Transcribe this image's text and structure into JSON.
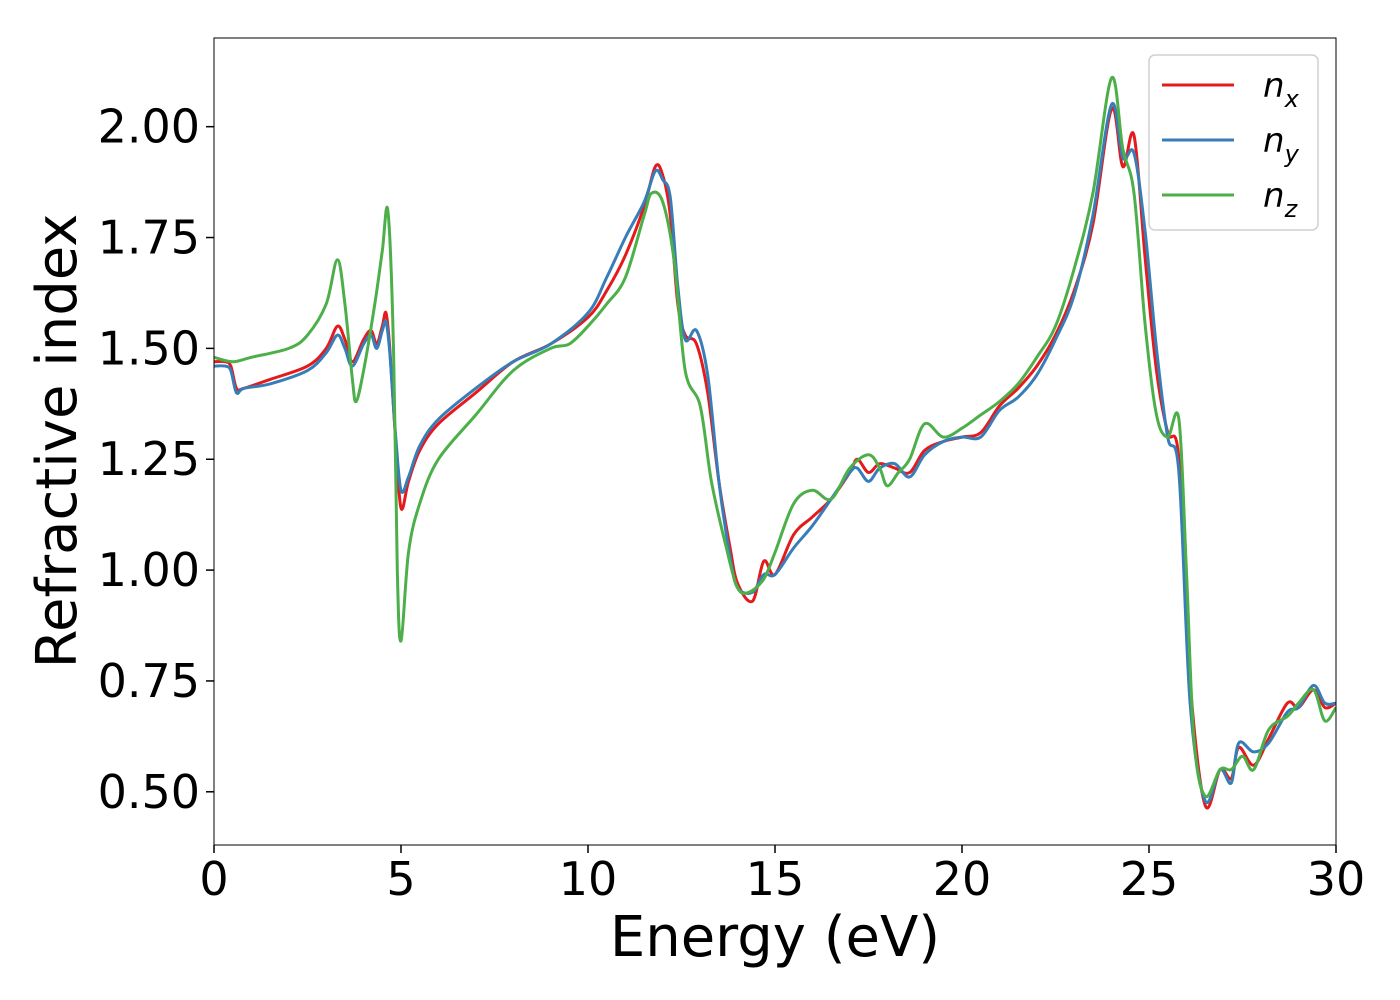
{
  "chart_data": {
    "type": "line",
    "title": "",
    "xlabel": "Energy (eV)",
    "ylabel": "Refractive index",
    "xlim": [
      0,
      30
    ],
    "ylim": [
      0.38,
      2.2
    ],
    "xticks": [
      0,
      5,
      10,
      15,
      20,
      25,
      30
    ],
    "xtick_labels": [
      "0",
      "5",
      "10",
      "15",
      "20",
      "25",
      "30"
    ],
    "yticks": [
      0.5,
      0.75,
      1.0,
      1.25,
      1.5,
      1.75,
      2.0
    ],
    "ytick_labels": [
      "0.50",
      "0.75",
      "1.00",
      "1.25",
      "1.50",
      "1.75",
      "2.00"
    ],
    "grid": false,
    "legend_position": "top-right",
    "series": [
      {
        "name": "n_x",
        "label_base": "n",
        "label_sub": "x",
        "color": "#e41a1c",
        "points": [
          [
            0,
            1.47
          ],
          [
            0.3,
            1.47
          ],
          [
            0.45,
            1.46
          ],
          [
            0.6,
            1.41
          ],
          [
            0.8,
            1.41
          ],
          [
            1.5,
            1.43
          ],
          [
            2.5,
            1.46
          ],
          [
            3.0,
            1.5
          ],
          [
            3.3,
            1.55
          ],
          [
            3.5,
            1.52
          ],
          [
            3.7,
            1.47
          ],
          [
            4.0,
            1.52
          ],
          [
            4.2,
            1.54
          ],
          [
            4.35,
            1.51
          ],
          [
            4.5,
            1.55
          ],
          [
            4.6,
            1.58
          ],
          [
            4.7,
            1.5
          ],
          [
            4.85,
            1.3
          ],
          [
            5.0,
            1.14
          ],
          [
            5.2,
            1.2
          ],
          [
            5.5,
            1.27
          ],
          [
            6.0,
            1.33
          ],
          [
            7.0,
            1.4
          ],
          [
            8.0,
            1.47
          ],
          [
            9.0,
            1.51
          ],
          [
            10.0,
            1.57
          ],
          [
            10.5,
            1.63
          ],
          [
            11.0,
            1.71
          ],
          [
            11.5,
            1.82
          ],
          [
            11.8,
            1.91
          ],
          [
            12.0,
            1.89
          ],
          [
            12.2,
            1.8
          ],
          [
            12.4,
            1.6
          ],
          [
            12.6,
            1.53
          ],
          [
            12.9,
            1.51
          ],
          [
            13.2,
            1.4
          ],
          [
            13.5,
            1.2
          ],
          [
            13.8,
            1.05
          ],
          [
            14.0,
            0.97
          ],
          [
            14.4,
            0.93
          ],
          [
            14.7,
            1.02
          ],
          [
            15.0,
            0.99
          ],
          [
            15.5,
            1.08
          ],
          [
            16.0,
            1.12
          ],
          [
            16.5,
            1.16
          ],
          [
            17.0,
            1.22
          ],
          [
            17.2,
            1.25
          ],
          [
            17.5,
            1.22
          ],
          [
            17.8,
            1.24
          ],
          [
            18.2,
            1.23
          ],
          [
            18.6,
            1.22
          ],
          [
            19.0,
            1.27
          ],
          [
            19.5,
            1.29
          ],
          [
            20.0,
            1.3
          ],
          [
            20.5,
            1.31
          ],
          [
            21.0,
            1.37
          ],
          [
            21.5,
            1.41
          ],
          [
            22.0,
            1.46
          ],
          [
            22.5,
            1.53
          ],
          [
            23.0,
            1.63
          ],
          [
            23.5,
            1.78
          ],
          [
            24.0,
            2.04
          ],
          [
            24.3,
            1.91
          ],
          [
            24.6,
            1.98
          ],
          [
            24.9,
            1.7
          ],
          [
            25.2,
            1.45
          ],
          [
            25.5,
            1.31
          ],
          [
            25.8,
            1.25
          ],
          [
            26.1,
            0.75
          ],
          [
            26.5,
            0.47
          ],
          [
            26.9,
            0.55
          ],
          [
            27.2,
            0.53
          ],
          [
            27.4,
            0.6
          ],
          [
            27.8,
            0.56
          ],
          [
            28.2,
            0.62
          ],
          [
            28.7,
            0.7
          ],
          [
            29.0,
            0.69
          ],
          [
            29.4,
            0.73
          ],
          [
            29.7,
            0.69
          ],
          [
            30.0,
            0.7
          ]
        ]
      },
      {
        "name": "n_y",
        "label_base": "n",
        "label_sub": "y",
        "color": "#377eb8",
        "points": [
          [
            0,
            1.46
          ],
          [
            0.3,
            1.46
          ],
          [
            0.45,
            1.45
          ],
          [
            0.6,
            1.4
          ],
          [
            0.8,
            1.41
          ],
          [
            1.5,
            1.42
          ],
          [
            2.5,
            1.45
          ],
          [
            3.0,
            1.49
          ],
          [
            3.3,
            1.53
          ],
          [
            3.5,
            1.5
          ],
          [
            3.7,
            1.46
          ],
          [
            4.0,
            1.51
          ],
          [
            4.2,
            1.53
          ],
          [
            4.35,
            1.5
          ],
          [
            4.5,
            1.54
          ],
          [
            4.6,
            1.56
          ],
          [
            4.7,
            1.49
          ],
          [
            4.85,
            1.31
          ],
          [
            5.0,
            1.18
          ],
          [
            5.2,
            1.21
          ],
          [
            5.5,
            1.28
          ],
          [
            6.0,
            1.34
          ],
          [
            7.0,
            1.41
          ],
          [
            8.0,
            1.47
          ],
          [
            9.0,
            1.51
          ],
          [
            10.0,
            1.58
          ],
          [
            10.5,
            1.66
          ],
          [
            11.0,
            1.75
          ],
          [
            11.5,
            1.83
          ],
          [
            11.8,
            1.9
          ],
          [
            12.0,
            1.88
          ],
          [
            12.2,
            1.84
          ],
          [
            12.4,
            1.64
          ],
          [
            12.6,
            1.52
          ],
          [
            12.9,
            1.54
          ],
          [
            13.2,
            1.44
          ],
          [
            13.5,
            1.2
          ],
          [
            13.8,
            1.03
          ],
          [
            14.0,
            0.96
          ],
          [
            14.4,
            0.95
          ],
          [
            14.7,
            0.99
          ],
          [
            15.0,
            0.99
          ],
          [
            15.5,
            1.05
          ],
          [
            16.0,
            1.1
          ],
          [
            16.5,
            1.16
          ],
          [
            17.0,
            1.22
          ],
          [
            17.2,
            1.23
          ],
          [
            17.5,
            1.2
          ],
          [
            17.8,
            1.23
          ],
          [
            18.2,
            1.24
          ],
          [
            18.6,
            1.21
          ],
          [
            19.0,
            1.26
          ],
          [
            19.5,
            1.29
          ],
          [
            20.0,
            1.3
          ],
          [
            20.5,
            1.3
          ],
          [
            21.0,
            1.36
          ],
          [
            21.5,
            1.39
          ],
          [
            22.0,
            1.44
          ],
          [
            22.5,
            1.52
          ],
          [
            23.0,
            1.62
          ],
          [
            23.5,
            1.8
          ],
          [
            24.0,
            2.05
          ],
          [
            24.3,
            1.93
          ],
          [
            24.6,
            1.94
          ],
          [
            24.9,
            1.76
          ],
          [
            25.2,
            1.5
          ],
          [
            25.5,
            1.3
          ],
          [
            25.8,
            1.22
          ],
          [
            26.1,
            0.7
          ],
          [
            26.5,
            0.48
          ],
          [
            26.9,
            0.55
          ],
          [
            27.2,
            0.52
          ],
          [
            27.4,
            0.61
          ],
          [
            27.8,
            0.59
          ],
          [
            28.2,
            0.61
          ],
          [
            28.7,
            0.68
          ],
          [
            29.0,
            0.69
          ],
          [
            29.4,
            0.74
          ],
          [
            29.7,
            0.7
          ],
          [
            30.0,
            0.7
          ]
        ]
      },
      {
        "name": "n_z",
        "label_base": "n",
        "label_sub": "z",
        "color": "#4daf4a",
        "points": [
          [
            0,
            1.48
          ],
          [
            0.5,
            1.47
          ],
          [
            1.0,
            1.48
          ],
          [
            2.0,
            1.5
          ],
          [
            2.5,
            1.53
          ],
          [
            3.0,
            1.6
          ],
          [
            3.3,
            1.7
          ],
          [
            3.5,
            1.6
          ],
          [
            3.7,
            1.43
          ],
          [
            3.8,
            1.38
          ],
          [
            4.0,
            1.45
          ],
          [
            4.3,
            1.6
          ],
          [
            4.5,
            1.72
          ],
          [
            4.65,
            1.81
          ],
          [
            4.8,
            1.5
          ],
          [
            4.9,
            1.0
          ],
          [
            5.0,
            0.84
          ],
          [
            5.2,
            1.04
          ],
          [
            5.5,
            1.15
          ],
          [
            6.0,
            1.25
          ],
          [
            7.0,
            1.35
          ],
          [
            8.0,
            1.45
          ],
          [
            9.0,
            1.5
          ],
          [
            9.5,
            1.51
          ],
          [
            10.0,
            1.55
          ],
          [
            10.5,
            1.6
          ],
          [
            11.0,
            1.66
          ],
          [
            11.5,
            1.8
          ],
          [
            11.7,
            1.85
          ],
          [
            12.0,
            1.83
          ],
          [
            12.3,
            1.7
          ],
          [
            12.6,
            1.45
          ],
          [
            13.0,
            1.37
          ],
          [
            13.3,
            1.2
          ],
          [
            13.7,
            1.05
          ],
          [
            14.0,
            0.96
          ],
          [
            14.3,
            0.95
          ],
          [
            14.7,
            0.98
          ],
          [
            15.0,
            1.04
          ],
          [
            15.5,
            1.15
          ],
          [
            16.0,
            1.18
          ],
          [
            16.5,
            1.16
          ],
          [
            17.0,
            1.23
          ],
          [
            17.5,
            1.26
          ],
          [
            17.8,
            1.23
          ],
          [
            18.0,
            1.19
          ],
          [
            18.3,
            1.22
          ],
          [
            18.6,
            1.25
          ],
          [
            19.0,
            1.33
          ],
          [
            19.5,
            1.3
          ],
          [
            20.0,
            1.32
          ],
          [
            20.5,
            1.35
          ],
          [
            21.0,
            1.38
          ],
          [
            21.5,
            1.42
          ],
          [
            22.0,
            1.48
          ],
          [
            22.5,
            1.55
          ],
          [
            23.0,
            1.68
          ],
          [
            23.5,
            1.85
          ],
          [
            24.0,
            2.11
          ],
          [
            24.3,
            1.95
          ],
          [
            24.6,
            1.85
          ],
          [
            24.9,
            1.55
          ],
          [
            25.2,
            1.35
          ],
          [
            25.5,
            1.3
          ],
          [
            25.8,
            1.34
          ],
          [
            26.0,
            1.0
          ],
          [
            26.2,
            0.62
          ],
          [
            26.5,
            0.49
          ],
          [
            26.9,
            0.55
          ],
          [
            27.2,
            0.55
          ],
          [
            27.5,
            0.58
          ],
          [
            27.8,
            0.55
          ],
          [
            28.2,
            0.64
          ],
          [
            28.7,
            0.67
          ],
          [
            29.0,
            0.7
          ],
          [
            29.4,
            0.73
          ],
          [
            29.7,
            0.66
          ],
          [
            30.0,
            0.69
          ]
        ]
      }
    ]
  }
}
